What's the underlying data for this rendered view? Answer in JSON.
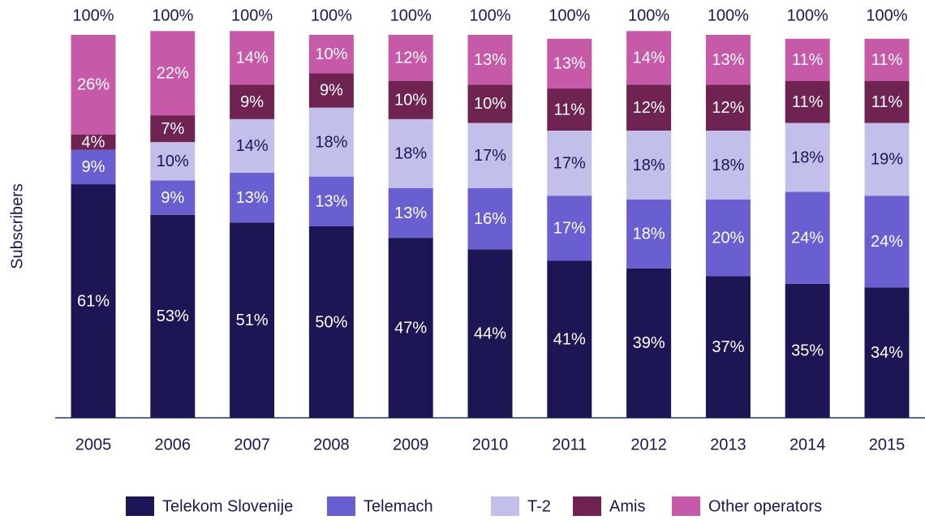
{
  "chart_data": {
    "type": "stacked_bar",
    "y_label": "Subscribers",
    "categories": [
      "2005",
      "2006",
      "2007",
      "2008",
      "2009",
      "2010",
      "2011",
      "2012",
      "2013",
      "2014",
      "2015"
    ],
    "series": [
      {
        "name": "Telekom Slovenije",
        "color": "#1c1654",
        "label_color": "#ffffff",
        "values": [
          61,
          53,
          51,
          50,
          47,
          44,
          41,
          39,
          37,
          35,
          34
        ],
        "value_labels": [
          "61%",
          "53%",
          "51%",
          "50%",
          "47%",
          "44%",
          "41%",
          "39%",
          "37%",
          "35%",
          "34%"
        ]
      },
      {
        "name": "Telemach",
        "color": "#6a5fd1",
        "label_color": "#ffffff",
        "values": [
          9,
          9,
          13,
          13,
          13,
          16,
          17,
          18,
          20,
          24,
          24
        ],
        "value_labels": [
          "9%",
          "9%",
          "13%",
          "13%",
          "13%",
          "16%",
          "17%",
          "18%",
          "20%",
          "24%",
          "24%"
        ]
      },
      {
        "name": "T-2",
        "color": "#c3bfeb",
        "label_color": "#1c1654",
        "values": [
          null,
          10,
          14,
          18,
          18,
          17,
          17,
          18,
          18,
          18,
          19
        ],
        "value_labels": [
          null,
          "10%",
          "14%",
          "18%",
          "18%",
          "17%",
          "17%",
          "18%",
          "18%",
          "18%",
          "19%"
        ]
      },
      {
        "name": "Amis",
        "color": "#6e2350",
        "label_color": "#ffffff",
        "values": [
          4,
          7,
          9,
          9,
          10,
          10,
          11,
          12,
          12,
          11,
          11
        ],
        "value_labels": [
          "4%",
          "7%",
          "9%",
          "9%",
          "10%",
          "10%",
          "11%",
          "12%",
          "12%",
          "11%",
          "11%"
        ]
      },
      {
        "name": "Other operators",
        "color": "#c659a8",
        "label_color": "#ffffff",
        "values": [
          26,
          22,
          14,
          10,
          12,
          13,
          13,
          14,
          13,
          11,
          11
        ],
        "value_labels": [
          "26%",
          "22%",
          "14%",
          "10%",
          "12%",
          "13%",
          "13%",
          "14%",
          "13%",
          "11%",
          "11%"
        ]
      }
    ],
    "totals": {
      "values": [
        100,
        100,
        100,
        100,
        100,
        100,
        100,
        100,
        100,
        100,
        100
      ],
      "value_labels": [
        "100%",
        "100%",
        "100%",
        "100%",
        "100%",
        "100%",
        "100%",
        "100%",
        "100%",
        "100%",
        "100%"
      ]
    },
    "ylim": [
      0,
      100
    ]
  }
}
